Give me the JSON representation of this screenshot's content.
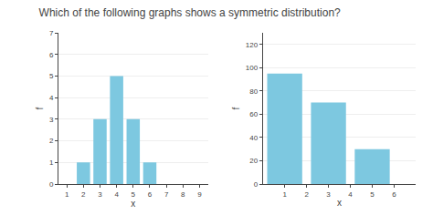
{
  "chart_data": [
    {
      "type": "bar",
      "title": "Which of the following graphs shows a symmetric distribution?",
      "x": [
        2,
        3,
        4,
        5,
        6
      ],
      "values": [
        1,
        3,
        5,
        3,
        1
      ],
      "color": "#7dc8e0",
      "xlim": [
        0.5,
        9.5
      ],
      "xticks": [
        1,
        2,
        3,
        4,
        5,
        6,
        7,
        8,
        9
      ],
      "ylim": [
        0,
        7
      ],
      "yticks": [
        0,
        1,
        2,
        3,
        4,
        5,
        6,
        7
      ],
      "xlabel": "x",
      "ylabel": "f",
      "grid": true
    },
    {
      "type": "bar",
      "x": [
        1,
        3,
        5
      ],
      "values": [
        95,
        70,
        30
      ],
      "color": "#7dc8e0",
      "xlim": [
        0,
        7
      ],
      "xticks": [
        1,
        2,
        3,
        4,
        5,
        6
      ],
      "ylim": [
        0,
        130
      ],
      "yticks": [
        0,
        20,
        40,
        60,
        80,
        100,
        120
      ],
      "xlabel": "x",
      "ylabel": "f",
      "grid": true
    }
  ]
}
